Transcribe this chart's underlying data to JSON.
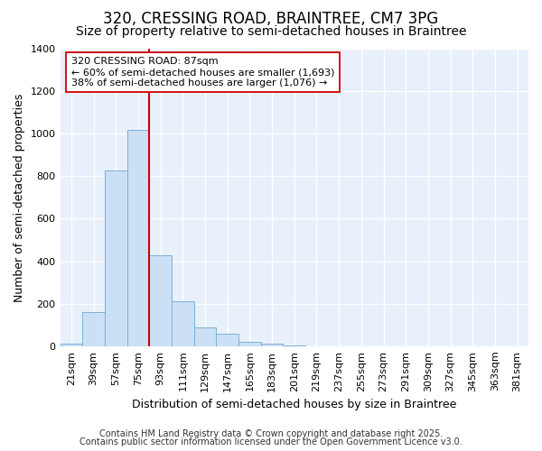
{
  "title_line1": "320, CRESSING ROAD, BRAINTREE, CM7 3PG",
  "title_line2": "Size of property relative to semi-detached houses in Braintree",
  "xlabel": "Distribution of semi-detached houses by size in Braintree",
  "ylabel": "Number of semi-detached properties",
  "categories": [
    "21sqm",
    "39sqm",
    "57sqm",
    "75sqm",
    "93sqm",
    "111sqm",
    "129sqm",
    "147sqm",
    "165sqm",
    "183sqm",
    "201sqm",
    "219sqm",
    "237sqm",
    "255sqm",
    "273sqm",
    "291sqm",
    "309sqm",
    "327sqm",
    "345sqm",
    "363sqm",
    "381sqm"
  ],
  "values": [
    10,
    160,
    825,
    1020,
    430,
    210,
    90,
    60,
    20,
    10,
    5,
    0,
    0,
    0,
    0,
    0,
    0,
    0,
    0,
    0,
    0
  ],
  "bar_color": "#cce0f5",
  "bar_edge_color": "#7ab0d8",
  "property_line_color": "#cc0000",
  "property_bin_index": 4,
  "annotation_text_line1": "320 CRESSING ROAD: 87sqm",
  "annotation_text_line2": "← 60% of semi-detached houses are smaller (1,693)",
  "annotation_text_line3": "38% of semi-detached houses are larger (1,076) →",
  "annotation_box_facecolor": "#ffffff",
  "annotation_box_edgecolor": "#cc0000",
  "footnote_line1": "Contains HM Land Registry data © Crown copyright and database right 2025.",
  "footnote_line2": "Contains public sector information licensed under the Open Government Licence v3.0.",
  "ylim": [
    0,
    1400
  ],
  "yticks": [
    0,
    200,
    400,
    600,
    800,
    1000,
    1200,
    1400
  ],
  "fig_bg_color": "#ffffff",
  "plot_bg_color": "#e8f0fc",
  "grid_color": "#ffffff",
  "title_fontsize": 12,
  "subtitle_fontsize": 10,
  "axis_label_fontsize": 9,
  "tick_fontsize": 8,
  "annotation_fontsize": 8,
  "footnote_fontsize": 7
}
